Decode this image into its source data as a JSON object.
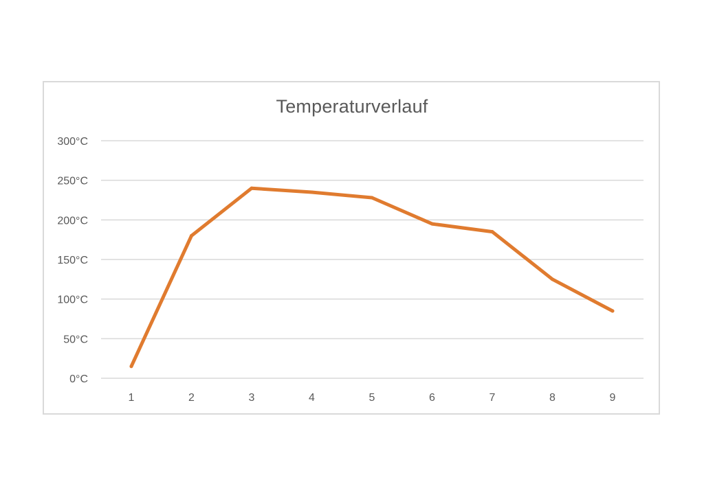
{
  "chart_data": {
    "type": "line",
    "title": "Temperaturverlauf",
    "xlabel": "",
    "ylabel": "",
    "categories": [
      "1",
      "2",
      "3",
      "4",
      "5",
      "6",
      "7",
      "8",
      "9"
    ],
    "series": [
      {
        "values": [
          15,
          180,
          240,
          235,
          228,
          195,
          185,
          125,
          85
        ],
        "color": "#e07b2f"
      }
    ],
    "ylim": [
      0,
      300
    ],
    "yticks": [
      0,
      50,
      100,
      150,
      200,
      250,
      300
    ],
    "ytick_labels": [
      "0°C",
      "50°C",
      "100°C",
      "150°C",
      "200°C",
      "250°C",
      "300°C"
    ],
    "grid": "horizontal",
    "grid_color": "#d9d9d9",
    "legend": "none"
  }
}
